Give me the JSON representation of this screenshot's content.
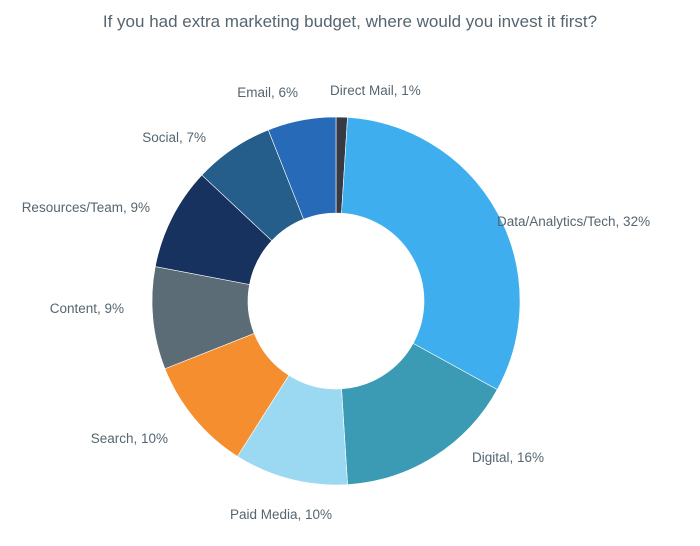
{
  "chart_data": {
    "type": "pie",
    "style": "donut",
    "title": "If you had extra marketing budget, where would you invest it first?",
    "start": "12 o'clock, clockwise",
    "slices": [
      {
        "label": "Direct Mail",
        "value": 1,
        "text": "Direct Mail, 1%",
        "color": "#353a45"
      },
      {
        "label": "Data/Analytics/Tech",
        "value": 32,
        "text": "Data/Analytics/Tech, 32%",
        "color": "#3eaeee"
      },
      {
        "label": "Digital",
        "value": 16,
        "text": "Digital, 16%",
        "color": "#3b9ab4"
      },
      {
        "label": "Paid Media",
        "value": 10,
        "text": "Paid Media, 10%",
        "color": "#9bd9f3"
      },
      {
        "label": "Search",
        "value": 10,
        "text": "Search, 10%",
        "color": "#f48e2e"
      },
      {
        "label": "Content",
        "value": 9,
        "text": "Content, 9%",
        "color": "#5b6c76"
      },
      {
        "label": "Resources/Team",
        "value": 9,
        "text": "Resources/Team, 9%",
        "color": "#17325f"
      },
      {
        "label": "Social",
        "value": 7,
        "text": "Social, 7%",
        "color": "#255d8b"
      },
      {
        "label": "Email",
        "value": 6,
        "text": "Email, 6%",
        "color": "#276bb8"
      }
    ]
  }
}
